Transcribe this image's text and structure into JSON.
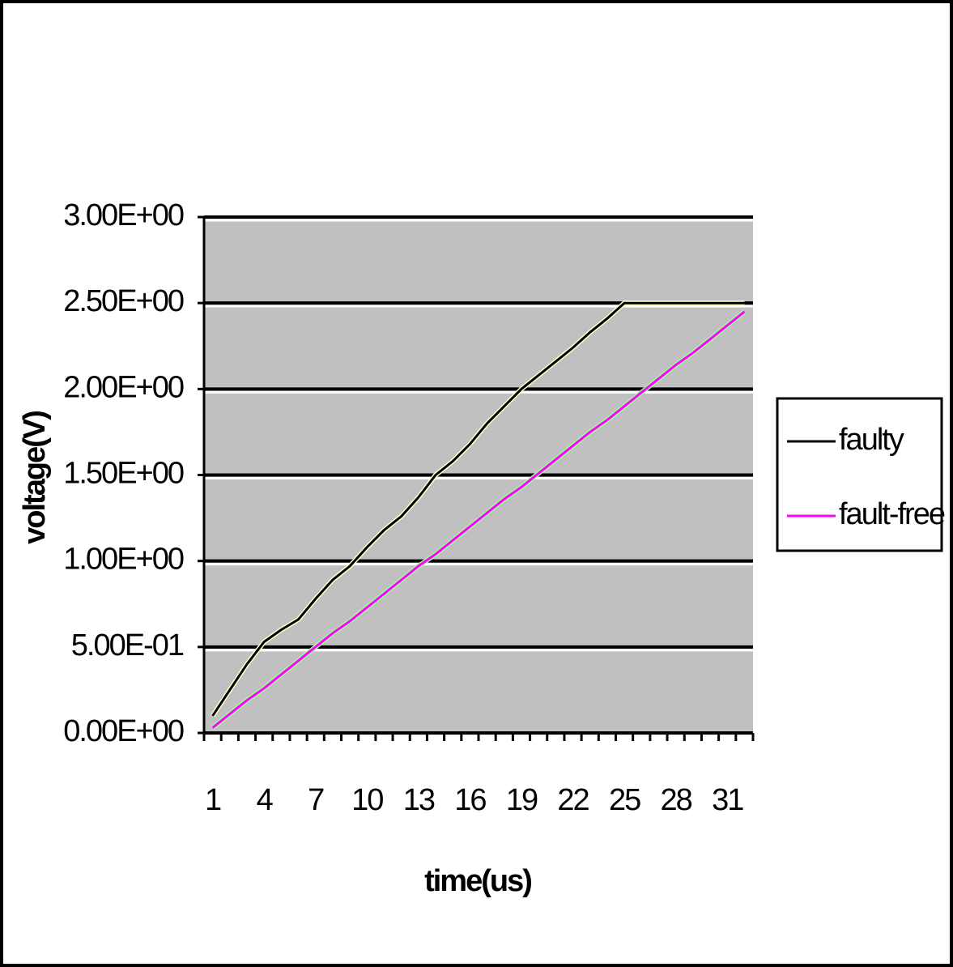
{
  "chart_data": {
    "type": "line",
    "x_label": "time(us)",
    "y_label": "voltage(V)",
    "categories": [
      "1",
      null,
      null,
      "4",
      null,
      null,
      "7",
      null,
      null,
      "10",
      null,
      null,
      "13",
      null,
      null,
      "16",
      null,
      null,
      "19",
      null,
      null,
      "22",
      null,
      null,
      "25",
      null,
      null,
      "28",
      null,
      null,
      "31",
      null
    ],
    "series": [
      {
        "name": "faulty",
        "color": "#000000",
        "values": [
          0.1,
          0.25,
          0.4,
          0.53,
          0.6,
          0.66,
          0.78,
          0.89,
          0.97,
          1.08,
          1.18,
          1.26,
          1.37,
          1.5,
          1.58,
          1.68,
          1.8,
          1.9,
          2.0,
          2.08,
          2.16,
          2.24,
          2.33,
          2.41,
          2.5,
          2.5,
          2.5,
          2.5,
          2.5,
          2.5,
          2.5,
          2.5
        ]
      },
      {
        "name": "fault-free",
        "color": "#ff00ff",
        "values": [
          0.03,
          0.11,
          0.19,
          0.26,
          0.34,
          0.42,
          0.5,
          0.58,
          0.65,
          0.73,
          0.81,
          0.89,
          0.97,
          1.04,
          1.12,
          1.2,
          1.28,
          1.36,
          1.43,
          1.51,
          1.59,
          1.67,
          1.75,
          1.82,
          1.9,
          1.98,
          2.06,
          2.14,
          2.21,
          2.29,
          2.37,
          2.45
        ]
      }
    ],
    "ylim": [
      0,
      3
    ],
    "yticks": [
      {
        "value": 0,
        "label": "0.00E+00"
      },
      {
        "value": 0.5,
        "label": "5.00E-01"
      },
      {
        "value": 1,
        "label": "1.00E+00"
      },
      {
        "value": 1.5,
        "label": "1.50E+00"
      },
      {
        "value": 2,
        "label": "2.00E+00"
      },
      {
        "value": 2.5,
        "label": "2.50E+00"
      },
      {
        "value": 3,
        "label": "3.00E+00"
      }
    ],
    "grid": true,
    "plot_background": "#c0c0c0",
    "legend": "right"
  }
}
